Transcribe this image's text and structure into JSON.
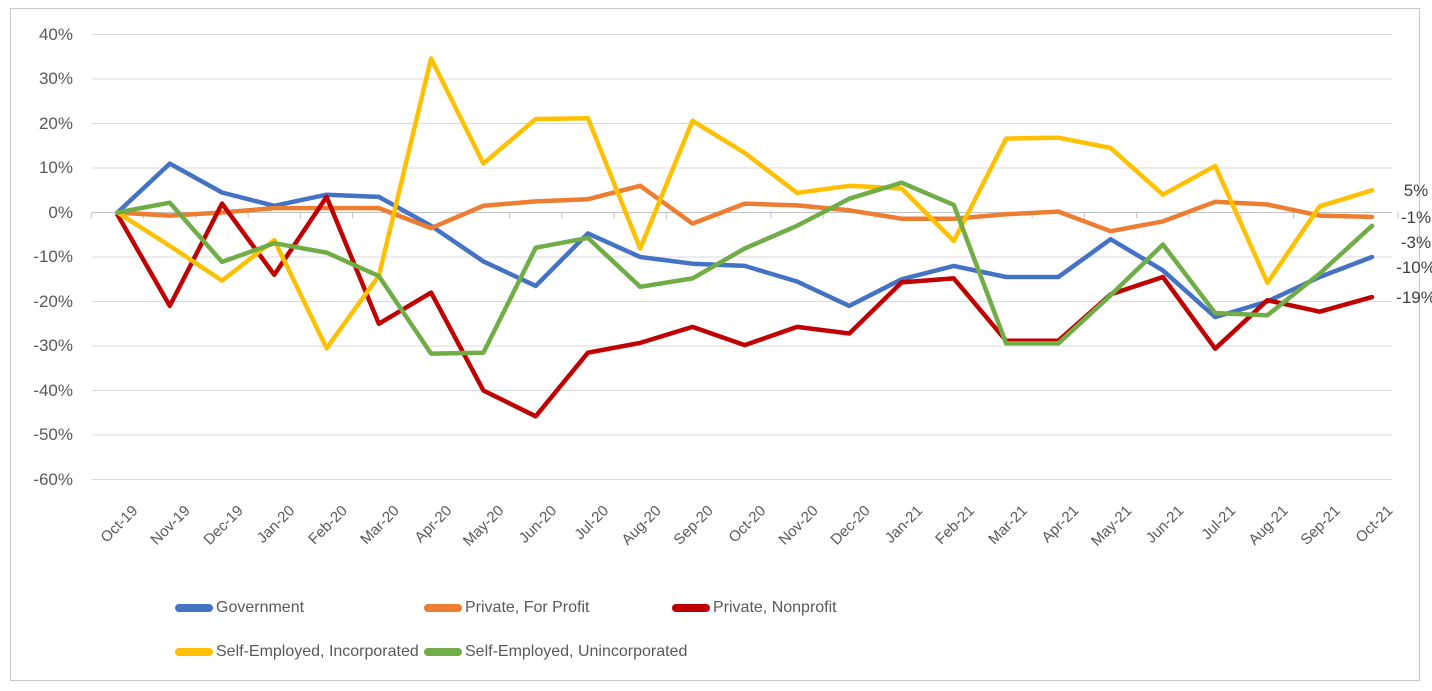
{
  "chart_data": {
    "type": "line",
    "title": "",
    "categories": [
      "Oct-19",
      "Nov-19",
      "Dec-19",
      "Jan-20",
      "Feb-20",
      "Mar-20",
      "Apr-20",
      "May-20",
      "Jun-20",
      "Jul-20",
      "Aug-20",
      "Sep-20",
      "Oct-20",
      "Nov-20",
      "Dec-20",
      "Jan-21",
      "Feb-21",
      "Mar-21",
      "Apr-21",
      "May-21",
      "Jun-21",
      "Jul-21",
      "Aug-21",
      "Sep-21",
      "Oct-21"
    ],
    "series": [
      {
        "name": "Government",
        "color": "#4472C4",
        "end_label": "-10%",
        "values": [
          0,
          11,
          4.5,
          1.5,
          4,
          3.5,
          -3,
          -11,
          -16.5,
          -4.7,
          -10,
          -11.5,
          -12,
          -15.5,
          -21,
          -15,
          -12,
          -14.5,
          -14.5,
          -6,
          -13,
          -23.5,
          -20,
          -14.5,
          -10
        ]
      },
      {
        "name": "Private, For Profit",
        "color": "#ED7D31",
        "end_label": "-1%",
        "values": [
          0,
          -0.7,
          0,
          1,
          1,
          1,
          -3.5,
          1.5,
          2.5,
          3,
          6,
          -2.5,
          2,
          1.6,
          0.5,
          -1.4,
          -1.4,
          -0.4,
          0.2,
          -4.2,
          -2,
          2.4,
          1.8,
          -0.7,
          -1
        ]
      },
      {
        "name": "Private, Nonprofit",
        "color": "#C00000",
        "end_label": "-19%",
        "values": [
          -0.5,
          -21,
          2,
          -14,
          3.5,
          -25,
          -18,
          -40,
          -45.8,
          -31.5,
          -29.3,
          -25.7,
          -29.8,
          -25.7,
          -27.2,
          -15.7,
          -14.8,
          -28.8,
          -28.8,
          -18.4,
          -14.5,
          -30.6,
          -19.7,
          -22.3,
          -19
        ]
      },
      {
        "name": "Self-Employed, Incorporated",
        "color": "#FFC000",
        "end_label": "5%",
        "values": [
          0,
          -7.5,
          -15.3,
          -6.2,
          -30.5,
          -14.2,
          34.6,
          11,
          21,
          21.2,
          -8.1,
          20.6,
          13.4,
          4.4,
          6,
          5.4,
          -6.4,
          16.6,
          16.8,
          14.5,
          4,
          10.5,
          -15.8,
          1.4,
          5
        ]
      },
      {
        "name": "Self-Employed, Unincorporated",
        "color": "#70AD47",
        "end_label": "-3%",
        "values": [
          0,
          2.2,
          -11.1,
          -6.9,
          -9,
          -14.3,
          -31.7,
          -31.5,
          -7.9,
          -5.7,
          -16.7,
          -14.8,
          -8.1,
          -3,
          3.1,
          6.7,
          1.7,
          -29.4,
          -29.4,
          -18.6,
          -7.2,
          -22.6,
          -23.1,
          -13.7,
          -3
        ]
      }
    ],
    "y_axis": {
      "min": -60,
      "max": 40,
      "step": 10,
      "tick_labels": [
        "40%",
        "30%",
        "20%",
        "10%",
        "0%",
        "-10%",
        "-20%",
        "-30%",
        "-40%",
        "-50%",
        "-60%"
      ]
    },
    "legend_position": "bottom",
    "legend_entries": [
      "Government",
      "Private, For Profit",
      "Private, Nonprofit",
      "Self-Employed, Incorporated",
      "Self-Employed, Unincorporated"
    ],
    "grid": true,
    "colors": {
      "gridline": "#d9d9d9",
      "zero_axis": "#c2c2c2",
      "axis_text": "#595959",
      "end_label_text": "#404040",
      "frame_border": "#c9c9c9",
      "background": "#ffffff"
    }
  }
}
